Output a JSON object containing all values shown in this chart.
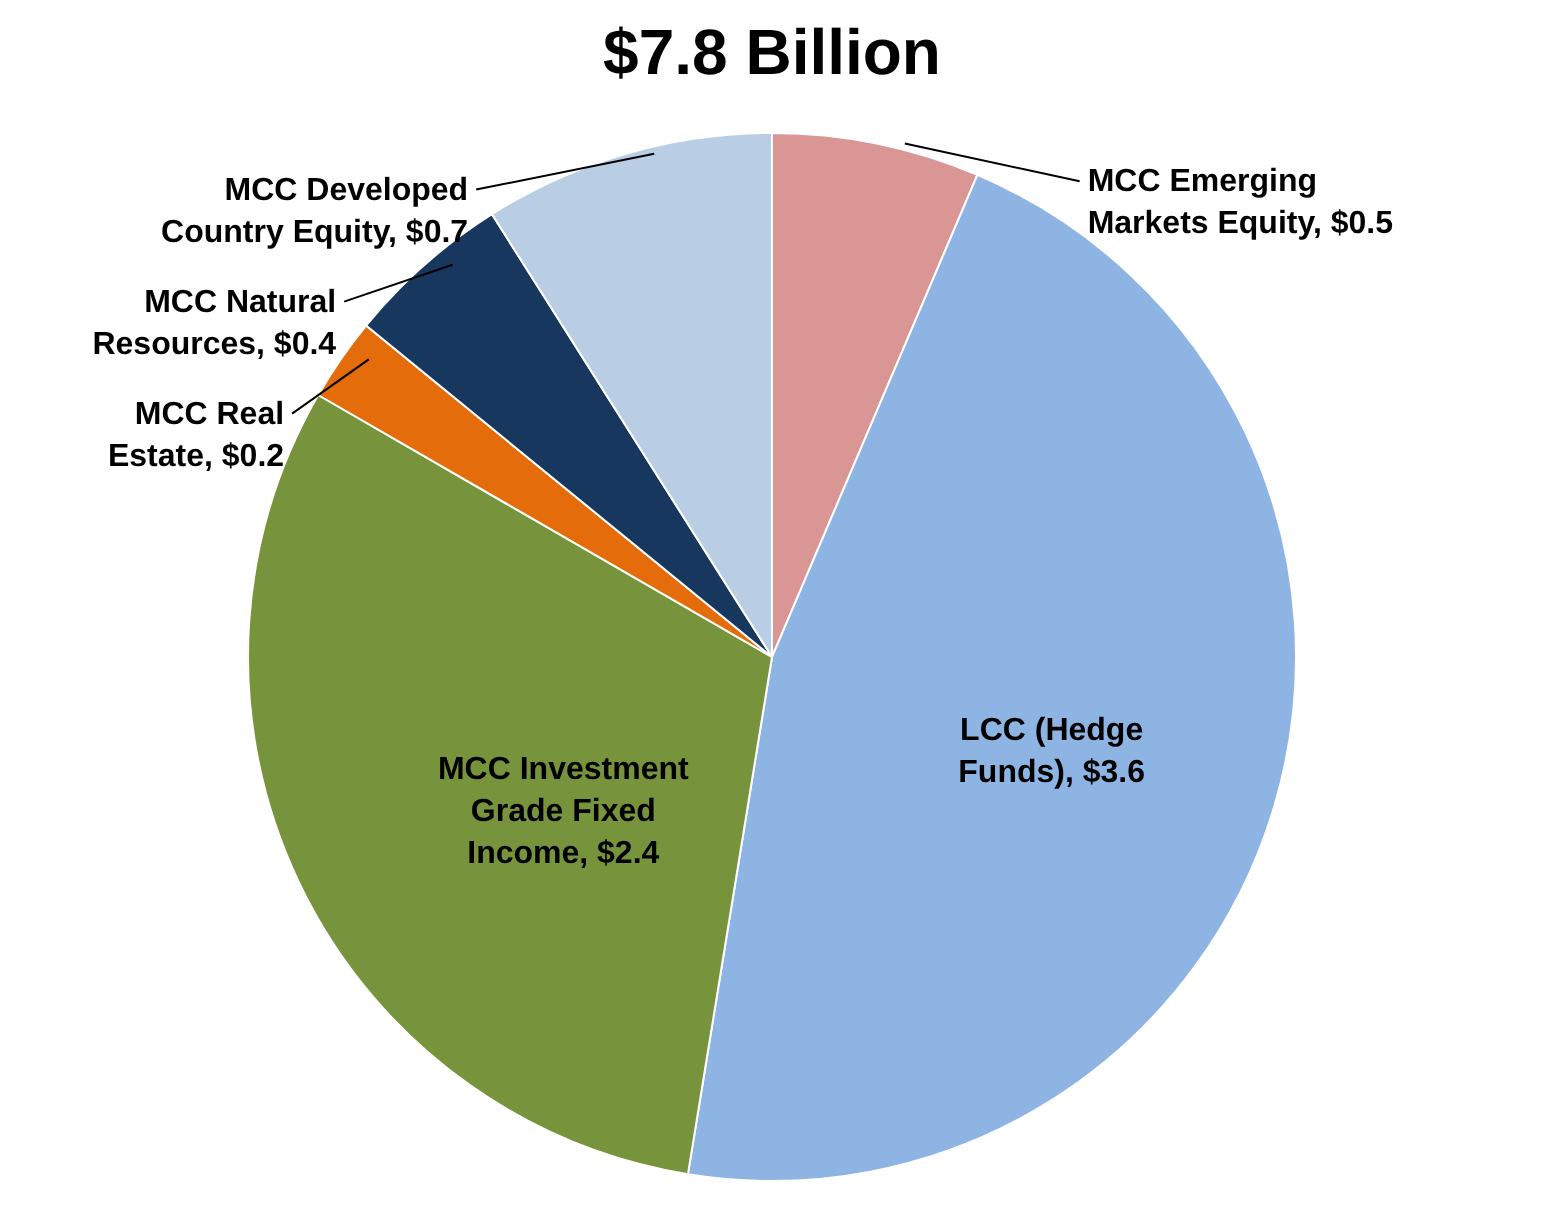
{
  "chart_data": {
    "type": "pie",
    "title": "$7.8 Billion",
    "categories": [
      "MCC Emerging Markets Equity",
      "LCC (Hedge Funds)",
      "MCC Investment Grade Fixed Income",
      "MCC Real Estate",
      "MCC Natural Resources",
      "MCC Developed Country Equity"
    ],
    "values": [
      0.5,
      3.6,
      2.4,
      0.2,
      0.4,
      0.7
    ],
    "value_labels": [
      "$0.5",
      "$3.6",
      "$2.4",
      "$0.2",
      "$0.4",
      "$0.7"
    ],
    "colors": [
      "#d99694",
      "#8eb4e3",
      "#77933c",
      "#e46c0a",
      "#17375e",
      "#b9cde5"
    ],
    "legend": false
  }
}
